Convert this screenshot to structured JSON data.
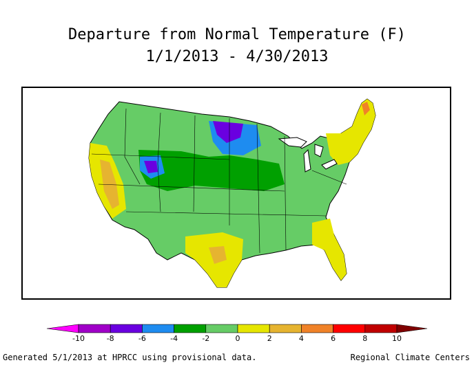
{
  "title": {
    "line1": "Departure from Normal Temperature (F)",
    "line2": "1/1/2013 - 4/30/2013"
  },
  "legend": {
    "ticks": [
      "-10",
      "-8",
      "-6",
      "-4",
      "-2",
      "0",
      "2",
      "4",
      "6",
      "8",
      "10"
    ],
    "colors": [
      "#ff00ff",
      "#a000c8",
      "#6a00e0",
      "#1e8cf0",
      "#00a000",
      "#66cc66",
      "#e6e600",
      "#e6b430",
      "#f08228",
      "#ff0000",
      "#c00000",
      "#800000"
    ]
  },
  "footer": {
    "left": "Generated 5/1/2013 at HPRCC using provisional data.",
    "right": "Regional Climate Centers"
  }
}
